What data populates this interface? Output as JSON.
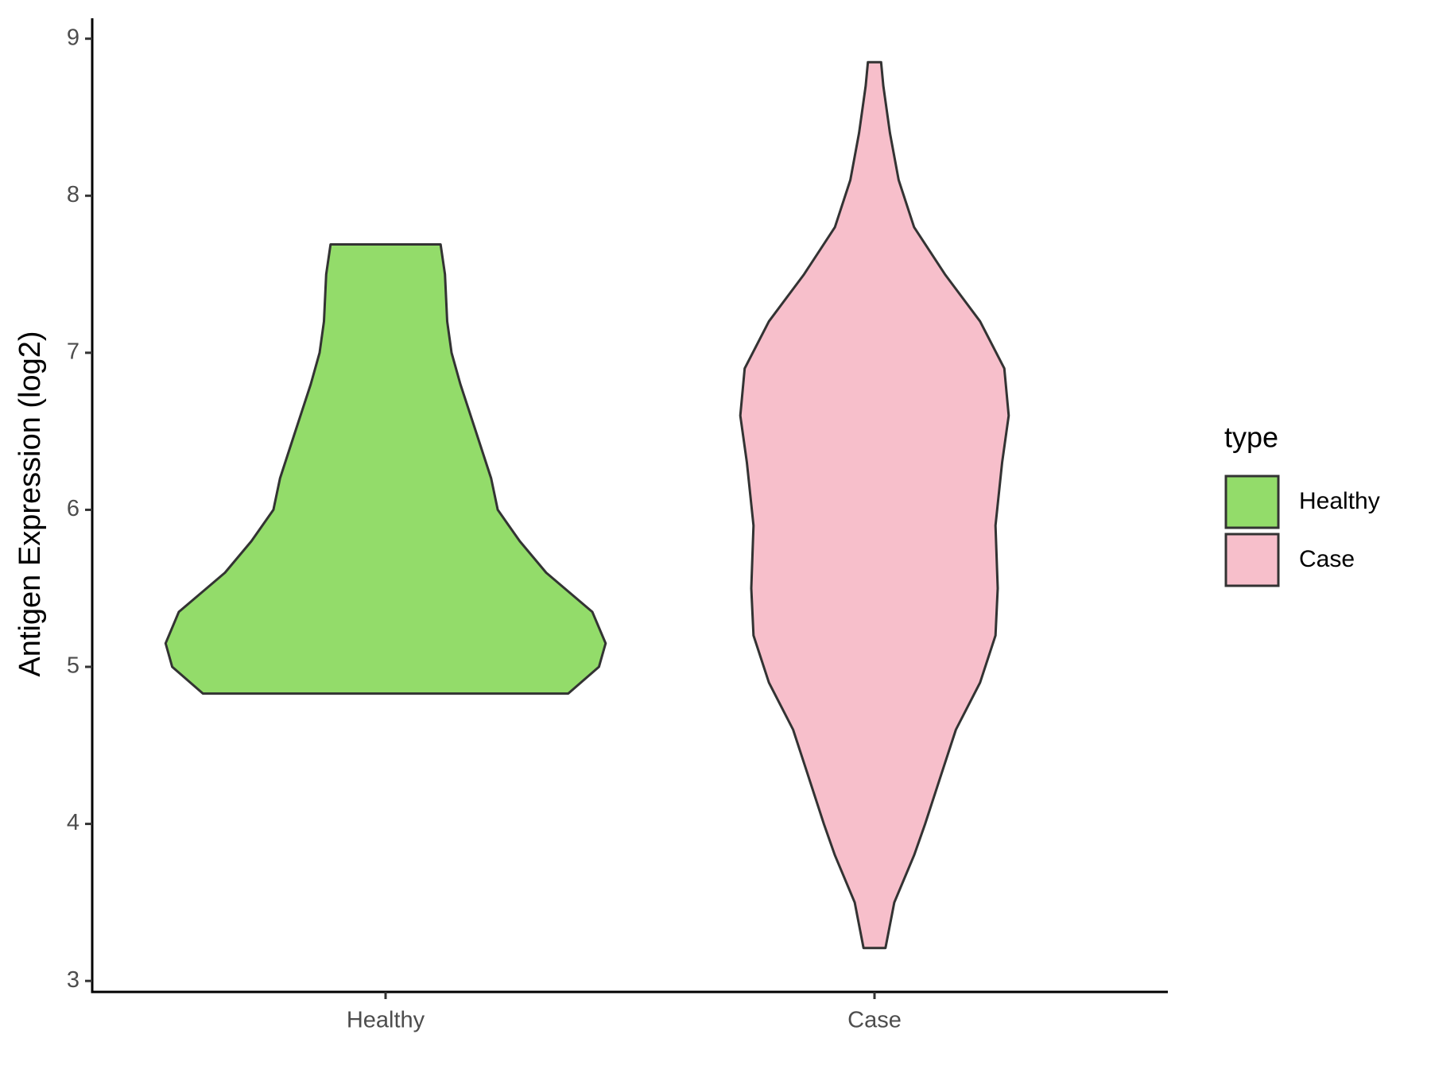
{
  "chart_data": {
    "type": "violin",
    "y_label": "Antigen Expression (log2)",
    "categories": [
      "Healthy",
      "Case"
    ],
    "legend_title": "type",
    "legend_position": "right",
    "ylim": [
      2.93,
      9.13
    ],
    "yticks": [
      3,
      4,
      5,
      6,
      7,
      8,
      9
    ],
    "series": [
      {
        "name": "Healthy",
        "color": "#93dc6a",
        "y": [
          4.83,
          5.0,
          5.15,
          5.35,
          5.6,
          5.8,
          6.0,
          6.2,
          6.5,
          6.8,
          7.0,
          7.2,
          7.5,
          7.69
        ],
        "density": [
          0.83,
          0.97,
          1.0,
          0.94,
          0.73,
          0.61,
          0.51,
          0.48,
          0.41,
          0.34,
          0.3,
          0.28,
          0.27,
          0.25
        ]
      },
      {
        "name": "Case",
        "color": "#f7bfcb",
        "y": [
          3.21,
          3.5,
          3.8,
          4.0,
          4.3,
          4.6,
          4.9,
          5.2,
          5.5,
          5.9,
          6.3,
          6.6,
          6.9,
          7.2,
          7.5,
          7.8,
          8.1,
          8.4,
          8.7,
          8.85
        ],
        "density": [
          0.05,
          0.09,
          0.18,
          0.23,
          0.3,
          0.37,
          0.48,
          0.55,
          0.56,
          0.55,
          0.58,
          0.61,
          0.59,
          0.48,
          0.32,
          0.18,
          0.11,
          0.07,
          0.04,
          0.03
        ]
      }
    ]
  }
}
